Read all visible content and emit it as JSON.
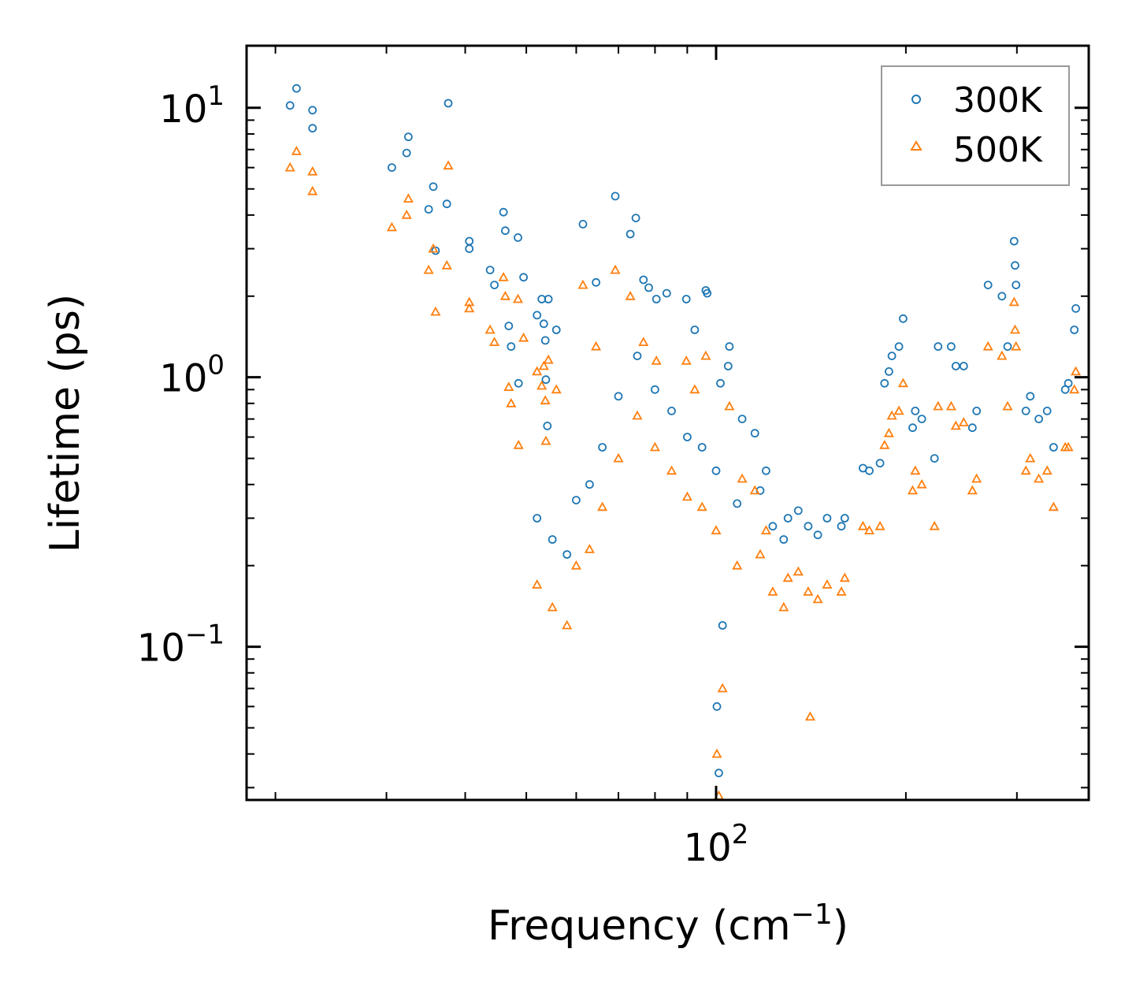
{
  "chart_data": {
    "type": "scatter",
    "title": "",
    "xlabel": "Frequency (cm",
    "xlabel_sup": "−1",
    "xlabel_suffix": ")",
    "ylabel": "Lifetime (ps)",
    "xscale": "log",
    "yscale": "log",
    "xlim": [
      18,
      390
    ],
    "ylim": [
      0.027,
      17
    ],
    "x_ticks": [
      {
        "value": 100,
        "base": "10",
        "exp": "2"
      }
    ],
    "y_ticks": [
      {
        "value": 10,
        "base": "10",
        "exp": "1"
      },
      {
        "value": 1,
        "base": "10",
        "exp": "0"
      },
      {
        "value": 0.1,
        "base": "10",
        "exp": "−1"
      }
    ],
    "legend_position": "top-right",
    "series": [
      {
        "name": "300K",
        "marker": "circle",
        "color": "#1f77b4",
        "points": [
          [
            21.1,
            10.2
          ],
          [
            21.6,
            11.8
          ],
          [
            22.9,
            9.8
          ],
          [
            22.9,
            8.4
          ],
          [
            30.6,
            6.0
          ],
          [
            32.3,
            6.8
          ],
          [
            32.5,
            7.8
          ],
          [
            35.0,
            4.2
          ],
          [
            35.6,
            5.1
          ],
          [
            35.9,
            2.95
          ],
          [
            37.4,
            4.4
          ],
          [
            37.6,
            10.4
          ],
          [
            40.6,
            3.0
          ],
          [
            40.6,
            3.2
          ],
          [
            43.8,
            2.5
          ],
          [
            44.5,
            2.2
          ],
          [
            46.0,
            4.1
          ],
          [
            46.3,
            3.5
          ],
          [
            46.9,
            1.55
          ],
          [
            47.3,
            1.3
          ],
          [
            48.5,
            3.3
          ],
          [
            48.6,
            0.95
          ],
          [
            49.5,
            2.35
          ],
          [
            52.0,
            1.7
          ],
          [
            52.9,
            1.95
          ],
          [
            53.3,
            1.58
          ],
          [
            53.6,
            1.37
          ],
          [
            54.2,
            1.95
          ],
          [
            53.7,
            0.98
          ],
          [
            54.0,
            0.66
          ],
          [
            55.8,
            1.5
          ],
          [
            61.5,
            3.7
          ],
          [
            64.5,
            2.25
          ],
          [
            69.2,
            4.7
          ],
          [
            73.1,
            3.4
          ],
          [
            74.6,
            3.9
          ],
          [
            76.7,
            2.3
          ],
          [
            78.2,
            2.15
          ],
          [
            80.4,
            1.95
          ],
          [
            83.5,
            2.05
          ],
          [
            89.7,
            1.95
          ],
          [
            92.5,
            1.5
          ],
          [
            96.3,
            2.1
          ],
          [
            96.8,
            2.05
          ],
          [
            101.6,
            0.95
          ],
          [
            104.5,
            1.1
          ],
          [
            101.0,
            0.034
          ],
          [
            100.3,
            0.06
          ],
          [
            102.4,
            0.12
          ],
          [
            108.0,
            0.34
          ],
          [
            115.2,
            0.62
          ],
          [
            117.5,
            0.38
          ],
          [
            123.0,
            0.28
          ],
          [
            128.0,
            0.25
          ],
          [
            135.0,
            0.32
          ],
          [
            140.0,
            0.28
          ],
          [
            150.0,
            0.3
          ],
          [
            158.0,
            0.28
          ],
          [
            171.0,
            0.46
          ],
          [
            182.0,
            0.48
          ],
          [
            188.0,
            1.05
          ],
          [
            195.0,
            1.3
          ],
          [
            198.0,
            1.65
          ],
          [
            207.0,
            0.75
          ],
          [
            212.0,
            0.7
          ],
          [
            222.0,
            0.5
          ],
          [
            236.0,
            1.3
          ],
          [
            247.0,
            1.1
          ],
          [
            259.0,
            0.75
          ],
          [
            284.0,
            2.0
          ],
          [
            297.0,
            3.2
          ],
          [
            298.0,
            2.6
          ],
          [
            299.0,
            2.2
          ],
          [
            315.0,
            0.85
          ],
          [
            325.0,
            0.7
          ],
          [
            343.0,
            0.55
          ],
          [
            362.0,
            0.95
          ],
          [
            370.0,
            1.5
          ],
          [
            372.0,
            1.8
          ],
          [
            52.0,
            0.3
          ],
          [
            55.0,
            0.25
          ],
          [
            58.0,
            0.22
          ],
          [
            60.0,
            0.35
          ],
          [
            63.0,
            0.4
          ],
          [
            66.0,
            0.55
          ],
          [
            70.0,
            0.85
          ],
          [
            75.0,
            1.2
          ],
          [
            80.0,
            0.9
          ],
          [
            85.0,
            0.75
          ],
          [
            90.0,
            0.6
          ],
          [
            95.0,
            0.55
          ],
          [
            100.0,
            0.45
          ],
          [
            105.0,
            1.3
          ],
          [
            110.0,
            0.7
          ],
          [
            120.0,
            0.45
          ],
          [
            130.0,
            0.3
          ],
          [
            145.0,
            0.26
          ],
          [
            160.0,
            0.3
          ],
          [
            175.0,
            0.45
          ],
          [
            185.0,
            0.95
          ],
          [
            190.0,
            1.2
          ],
          [
            205.0,
            0.65
          ],
          [
            225.0,
            1.3
          ],
          [
            240.0,
            1.1
          ],
          [
            255.0,
            0.65
          ],
          [
            270.0,
            2.2
          ],
          [
            290.0,
            1.3
          ],
          [
            310.0,
            0.75
          ],
          [
            335.0,
            0.75
          ],
          [
            358.0,
            0.9
          ]
        ]
      },
      {
        "name": "500K",
        "marker": "triangle",
        "color": "#ff7f0e",
        "points": [
          [
            21.1,
            6.0
          ],
          [
            21.6,
            6.9
          ],
          [
            22.9,
            5.8
          ],
          [
            22.9,
            4.9
          ],
          [
            30.6,
            3.6
          ],
          [
            32.3,
            4.0
          ],
          [
            32.5,
            4.6
          ],
          [
            35.0,
            2.5
          ],
          [
            35.6,
            3.0
          ],
          [
            35.9,
            1.75
          ],
          [
            37.4,
            2.6
          ],
          [
            37.6,
            6.1
          ],
          [
            40.6,
            1.9
          ],
          [
            40.6,
            1.8
          ],
          [
            43.8,
            1.5
          ],
          [
            44.5,
            1.35
          ],
          [
            46.0,
            2.35
          ],
          [
            46.3,
            2.0
          ],
          [
            46.9,
            0.92
          ],
          [
            47.3,
            0.8
          ],
          [
            48.5,
            1.95
          ],
          [
            48.6,
            0.56
          ],
          [
            49.5,
            1.4
          ],
          [
            52.0,
            1.05
          ],
          [
            52.9,
            0.93
          ],
          [
            53.3,
            1.1
          ],
          [
            53.6,
            0.82
          ],
          [
            54.2,
            1.16
          ],
          [
            53.7,
            0.58
          ],
          [
            55.8,
            0.9
          ],
          [
            61.5,
            2.2
          ],
          [
            64.5,
            1.3
          ],
          [
            69.2,
            2.5
          ],
          [
            73.1,
            2.0
          ],
          [
            76.7,
            1.35
          ],
          [
            80.4,
            1.15
          ],
          [
            89.7,
            1.15
          ],
          [
            92.5,
            0.9
          ],
          [
            96.3,
            1.2
          ],
          [
            101.0,
            0.028
          ],
          [
            100.3,
            0.04
          ],
          [
            102.4,
            0.07
          ],
          [
            108.0,
            0.2
          ],
          [
            115.2,
            0.38
          ],
          [
            117.5,
            0.22
          ],
          [
            123.0,
            0.16
          ],
          [
            128.0,
            0.14
          ],
          [
            135.0,
            0.19
          ],
          [
            140.0,
            0.16
          ],
          [
            141.0,
            0.055
          ],
          [
            150.0,
            0.17
          ],
          [
            158.0,
            0.16
          ],
          [
            171.0,
            0.28
          ],
          [
            182.0,
            0.28
          ],
          [
            188.0,
            0.62
          ],
          [
            195.0,
            0.75
          ],
          [
            198.0,
            0.95
          ],
          [
            207.0,
            0.45
          ],
          [
            212.0,
            0.4
          ],
          [
            222.0,
            0.28
          ],
          [
            236.0,
            0.78
          ],
          [
            247.0,
            0.68
          ],
          [
            259.0,
            0.42
          ],
          [
            284.0,
            1.2
          ],
          [
            297.0,
            1.9
          ],
          [
            298.0,
            1.5
          ],
          [
            299.0,
            1.3
          ],
          [
            315.0,
            0.5
          ],
          [
            325.0,
            0.42
          ],
          [
            343.0,
            0.33
          ],
          [
            362.0,
            0.55
          ],
          [
            370.0,
            0.9
          ],
          [
            372.0,
            1.05
          ],
          [
            52.0,
            0.17
          ],
          [
            55.0,
            0.14
          ],
          [
            58.0,
            0.12
          ],
          [
            60.0,
            0.2
          ],
          [
            63.0,
            0.23
          ],
          [
            66.0,
            0.33
          ],
          [
            70.0,
            0.5
          ],
          [
            75.0,
            0.72
          ],
          [
            80.0,
            0.55
          ],
          [
            85.0,
            0.45
          ],
          [
            90.0,
            0.36
          ],
          [
            95.0,
            0.33
          ],
          [
            100.0,
            0.27
          ],
          [
            105.0,
            0.78
          ],
          [
            110.0,
            0.42
          ],
          [
            120.0,
            0.27
          ],
          [
            130.0,
            0.18
          ],
          [
            145.0,
            0.15
          ],
          [
            160.0,
            0.18
          ],
          [
            175.0,
            0.27
          ],
          [
            185.0,
            0.56
          ],
          [
            190.0,
            0.72
          ],
          [
            205.0,
            0.38
          ],
          [
            225.0,
            0.78
          ],
          [
            240.0,
            0.66
          ],
          [
            255.0,
            0.38
          ],
          [
            270.0,
            1.3
          ],
          [
            290.0,
            0.78
          ],
          [
            310.0,
            0.45
          ],
          [
            335.0,
            0.45
          ],
          [
            358.0,
            0.55
          ]
        ]
      }
    ]
  }
}
